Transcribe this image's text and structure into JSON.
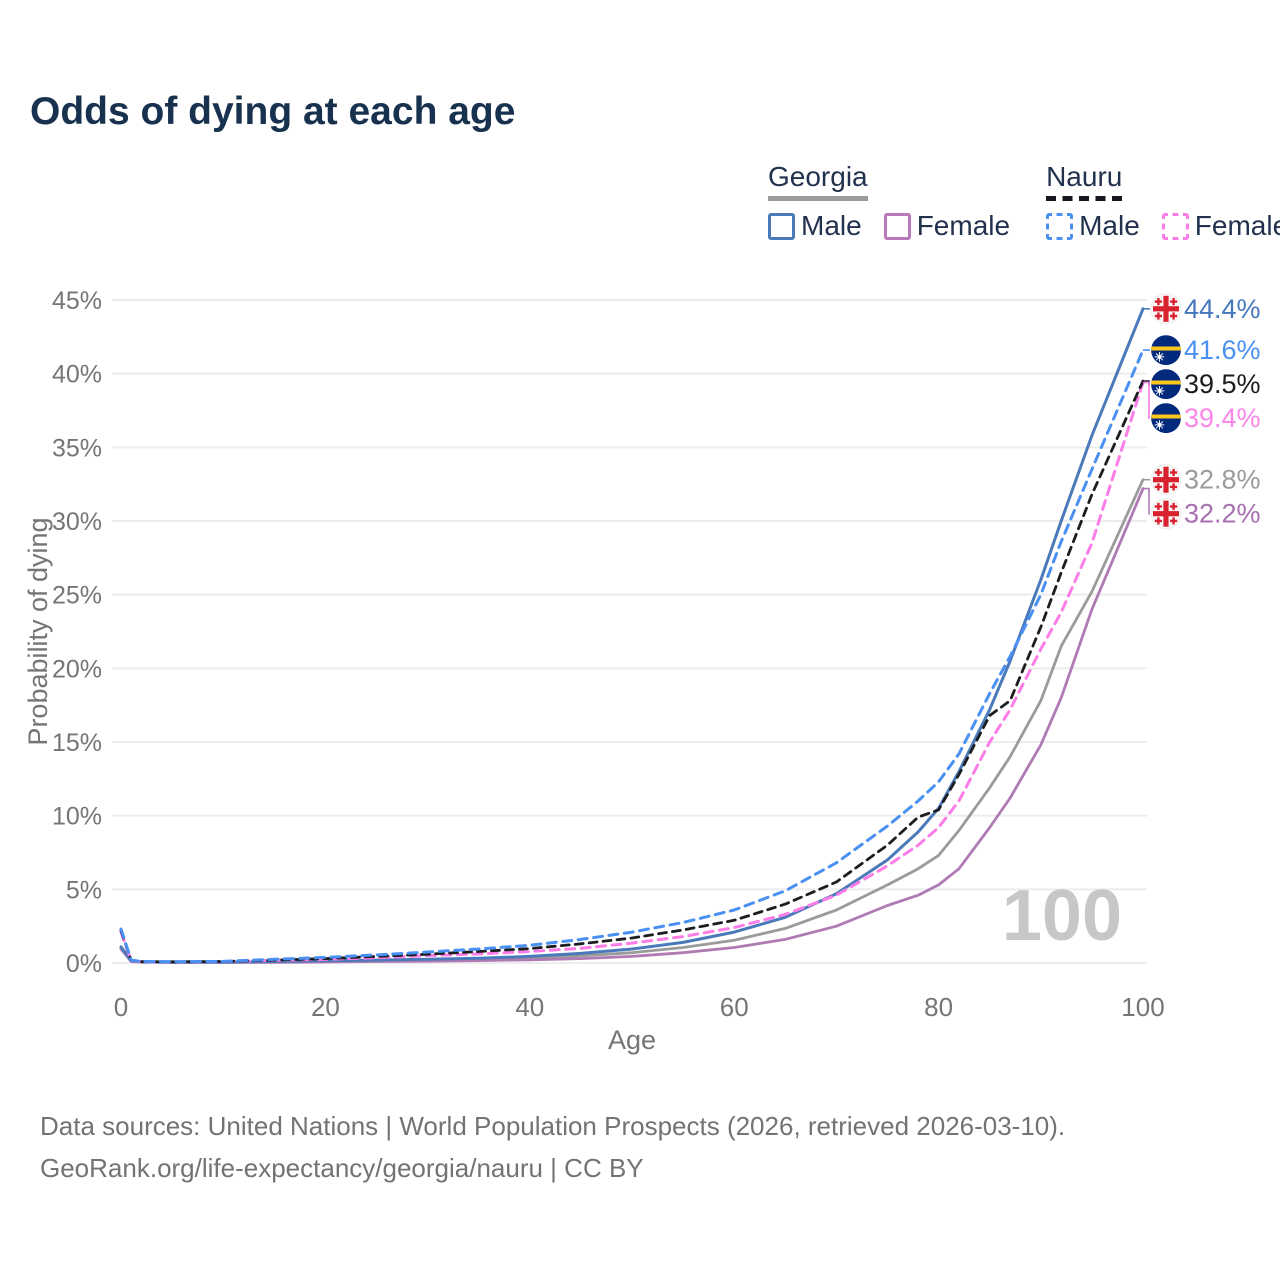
{
  "title": "Odds of dying at each age",
  "legend": {
    "groups": [
      {
        "country": "Georgia",
        "line_style": "solid",
        "underline_color": "#9b9b9b",
        "items": [
          {
            "label": "Male",
            "color": "#4a7ab9"
          },
          {
            "label": "Female",
            "color": "#b87ab8"
          }
        ]
      },
      {
        "country": "Nauru",
        "line_style": "dashed",
        "underline_color": "#15181c",
        "items": [
          {
            "label": "Male",
            "color": "#4a90f2"
          },
          {
            "label": "Female",
            "color": "#fc7ce8"
          }
        ]
      }
    ]
  },
  "chart_data": {
    "type": "line",
    "title": "Odds of dying at each age",
    "xlabel": "Age",
    "ylabel": "Probability of dying",
    "xlim": [
      0,
      100
    ],
    "ylim": [
      0,
      45
    ],
    "x_ticks": [
      0,
      20,
      40,
      60,
      80,
      100
    ],
    "y_ticks": [
      0,
      5,
      10,
      15,
      20,
      25,
      30,
      35,
      40,
      45
    ],
    "y_tick_suffix": "%",
    "grid": "horizontal",
    "age_cursor_watermark": "100",
    "x": [
      0,
      1,
      2,
      5,
      10,
      15,
      20,
      25,
      30,
      35,
      40,
      45,
      50,
      55,
      60,
      65,
      70,
      75,
      78,
      80,
      82,
      85,
      87,
      90,
      92,
      95,
      100
    ],
    "series": [
      {
        "id": "georgia-all",
        "name": "Georgia",
        "country": "Georgia",
        "sex": "Both",
        "color": "#9b9b9b",
        "label_color": "#9b9b9b",
        "line_style": "solid",
        "width": 2.8,
        "flag": "georgia",
        "end_label": "32.8%",
        "values": [
          1.0,
          0.12,
          0.07,
          0.045,
          0.045,
          0.08,
          0.11,
          0.15,
          0.19,
          0.25,
          0.34,
          0.48,
          0.7,
          1.05,
          1.55,
          2.35,
          3.6,
          5.3,
          6.4,
          7.3,
          9.0,
          11.9,
          14.0,
          17.8,
          21.5,
          25.2,
          32.8
        ]
      },
      {
        "id": "georgia-female",
        "name": "Georgia Female",
        "country": "Georgia",
        "sex": "Female",
        "color": "#b07ab5",
        "label_color": "#a76fb0",
        "line_style": "solid",
        "width": 2.8,
        "flag": "georgia",
        "end_label": "32.2%",
        "values": [
          0.95,
          0.1,
          0.06,
          0.04,
          0.04,
          0.05,
          0.07,
          0.1,
          0.12,
          0.16,
          0.22,
          0.3,
          0.45,
          0.7,
          1.05,
          1.6,
          2.5,
          3.9,
          4.6,
          5.3,
          6.4,
          9.2,
          11.2,
          14.8,
          18.0,
          24.0,
          32.2
        ]
      },
      {
        "id": "georgia-male",
        "name": "Georgia Male",
        "country": "Georgia",
        "sex": "Male",
        "color": "#4a7ab9",
        "label_color": "#4477bb",
        "line_style": "solid",
        "width": 3,
        "flag": "georgia",
        "end_label": "44.4%",
        "values": [
          1.1,
          0.15,
          0.08,
          0.05,
          0.05,
          0.1,
          0.15,
          0.2,
          0.25,
          0.32,
          0.45,
          0.65,
          0.95,
          1.4,
          2.1,
          3.1,
          4.7,
          7.0,
          8.9,
          10.5,
          13.0,
          17.2,
          20.5,
          26.0,
          30.0,
          35.8,
          44.4
        ]
      },
      {
        "id": "nauru-female",
        "name": "Nauru Female",
        "country": "Nauru",
        "sex": "Female",
        "color": "#fc7ce8",
        "label_color": "#fc86e8",
        "line_style": "dashed",
        "width": 3,
        "flag": "nauru",
        "end_label": "39.4%",
        "values": [
          2.1,
          0.17,
          0.09,
          0.07,
          0.09,
          0.18,
          0.25,
          0.35,
          0.5,
          0.62,
          0.78,
          1.0,
          1.35,
          1.8,
          2.4,
          3.3,
          4.6,
          6.6,
          8.0,
          9.2,
          11.0,
          15.0,
          17.2,
          21.3,
          23.8,
          28.5,
          39.4
        ]
      },
      {
        "id": "nauru-all",
        "name": "Nauru",
        "country": "Nauru",
        "sex": "Both",
        "color": "#1b1d21",
        "label_color": "#1b1d21",
        "line_style": "dashed",
        "width": 2.8,
        "flag": "nauru",
        "end_label": "39.5%",
        "values": [
          2.2,
          0.18,
          0.09,
          0.08,
          0.1,
          0.2,
          0.3,
          0.45,
          0.6,
          0.78,
          0.98,
          1.3,
          1.7,
          2.25,
          2.9,
          4.0,
          5.5,
          8.0,
          9.9,
          10.4,
          12.8,
          16.8,
          17.8,
          22.8,
          26.5,
          31.8,
          39.5
        ]
      },
      {
        "id": "nauru-male",
        "name": "Nauru Male",
        "country": "Nauru",
        "sex": "Male",
        "color": "#4a90f2",
        "label_color": "#4a90f2",
        "line_style": "dashed",
        "width": 3,
        "flag": "nauru",
        "end_label": "41.6%",
        "values": [
          2.3,
          0.2,
          0.1,
          0.09,
          0.11,
          0.25,
          0.38,
          0.55,
          0.75,
          0.95,
          1.2,
          1.6,
          2.1,
          2.75,
          3.6,
          4.9,
          6.8,
          9.3,
          11.0,
          12.3,
          14.2,
          18.3,
          20.8,
          25.0,
          28.6,
          33.5,
          41.6
        ]
      }
    ]
  },
  "footer": {
    "line1": "Data sources: United Nations | World Population Prospects (2026, retrieved 2026-03-10).",
    "line2": "GeoRank.org/life-expectancy/georgia/nauru | CC BY"
  }
}
